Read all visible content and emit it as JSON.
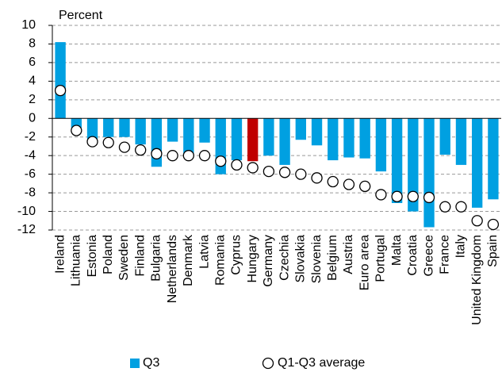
{
  "chart_data": {
    "type": "bar",
    "y_label": "Percent",
    "categories": [
      "Ireland",
      "Lithuania",
      "Estonia",
      "Poland",
      "Sweden",
      "Finland",
      "Bulgaria",
      "Netherlands",
      "Denmark",
      "Latvia",
      "Romania",
      "Cyprus",
      "Hungary",
      "Germany",
      "Czechia",
      "Slovakia",
      "Slovenia",
      "Belgium",
      "Austria",
      "Euro area",
      "Portugal",
      "Malta",
      "Croatia",
      "Greece",
      "France",
      "Italy",
      "United Kingdom",
      "Spain"
    ],
    "series": [
      {
        "name": "Q3",
        "style": "bar",
        "color": "#00a0e1",
        "colors": [
          "#00a0e1",
          "#00a0e1",
          "#00a0e1",
          "#00a0e1",
          "#00a0e1",
          "#00a0e1",
          "#00a0e1",
          "#00a0e1",
          "#00a0e1",
          "#00a0e1",
          "#00a0e1",
          "#00a0e1",
          "#c00000",
          "#00a0e1",
          "#00a0e1",
          "#00a0e1",
          "#00a0e1",
          "#00a0e1",
          "#00a0e1",
          "#00a0e1",
          "#00a0e1",
          "#00a0e1",
          "#00a0e1",
          "#00a0e1",
          "#00a0e1",
          "#00a0e1",
          "#00a0e1",
          "#00a0e1"
        ],
        "values": [
          8.2,
          -1.0,
          -2.2,
          -2.0,
          -2.0,
          -2.8,
          -5.2,
          -2.5,
          -3.8,
          -2.6,
          -6.0,
          -4.5,
          -4.6,
          -4.0,
          -5.0,
          -2.3,
          -2.9,
          -4.5,
          -4.2,
          -4.3,
          -5.7,
          -9.1,
          -10.0,
          -11.7,
          -3.9,
          -5.0,
          -9.6,
          -8.7
        ]
      },
      {
        "name": "Q1-Q3 average",
        "style": "marker",
        "color": "#ffffff",
        "values": [
          3.0,
          -1.3,
          -2.5,
          -2.6,
          -3.1,
          -3.4,
          -3.8,
          -4.0,
          -4.0,
          -4.0,
          -4.6,
          -5.0,
          -5.3,
          -5.7,
          -5.8,
          -6.0,
          -6.4,
          -6.8,
          -7.1,
          -7.3,
          -8.2,
          -8.4,
          -8.4,
          -8.5,
          -9.5,
          -9.5,
          -11.0,
          -11.4
        ]
      }
    ],
    "ylim": [
      -12,
      10
    ],
    "yticks": [
      -12,
      -10,
      -8,
      -6,
      -4,
      -2,
      0,
      2,
      4,
      6,
      8,
      10
    ],
    "grid": true,
    "legend": "bottom"
  }
}
